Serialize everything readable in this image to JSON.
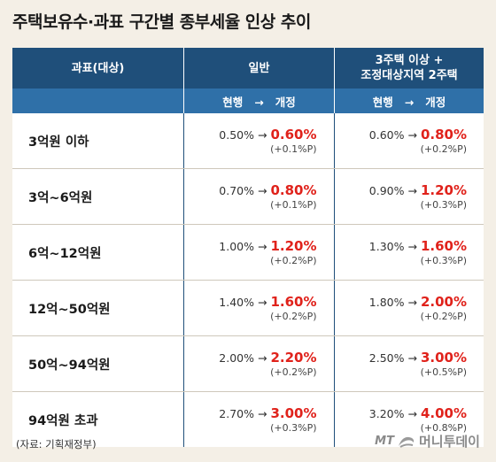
{
  "title": "주택보유수·과표 구간별 종부세율 인상 추이",
  "header": {
    "col0": "과표(대상)",
    "col1": "일반",
    "col2_line1": "3주택 이상 +",
    "col2_line2": "조정대상지역 2주택",
    "sub1": "현행   →   개정",
    "sub2": "현행   →   개정"
  },
  "rows": [
    {
      "label": "3억원 이하",
      "g_cur": "0.50% →",
      "g_new": "0.60%",
      "g_diff": "(+0.1%P)",
      "m_cur": "0.60% →",
      "m_new": "0.80%",
      "m_diff": "(+0.2%P)"
    },
    {
      "label": "3억~6억원",
      "g_cur": "0.70% →",
      "g_new": "0.80%",
      "g_diff": "(+0.1%P)",
      "m_cur": "0.90% →",
      "m_new": "1.20%",
      "m_diff": "(+0.3%P)"
    },
    {
      "label": "6억~12억원",
      "g_cur": "1.00% →",
      "g_new": "1.20%",
      "g_diff": "(+0.2%P)",
      "m_cur": "1.30% →",
      "m_new": "1.60%",
      "m_diff": "(+0.3%P)"
    },
    {
      "label": "12억~50억원",
      "g_cur": "1.40% →",
      "g_new": "1.60%",
      "g_diff": "(+0.2%P)",
      "m_cur": "1.80% →",
      "m_new": "2.00%",
      "m_diff": "(+0.2%P)"
    },
    {
      "label": "50억~94억원",
      "g_cur": "2.00% →",
      "g_new": "2.20%",
      "g_diff": "(+0.2%P)",
      "m_cur": "2.50% →",
      "m_new": "3.00%",
      "m_diff": "(+0.5%P)"
    },
    {
      "label": "94억원 초과",
      "g_cur": "2.70% →",
      "g_new": "3.00%",
      "g_diff": "(+0.3%P)",
      "m_cur": "3.20% →",
      "m_new": "4.00%",
      "m_diff": "(+0.8%P)"
    }
  ],
  "source": "(자료: 기획재정부)",
  "logo": {
    "mt": "MT",
    "name": "머니투데이"
  },
  "colors": {
    "header": "#1f4f7a",
    "subheader": "#2f70a8",
    "highlight": "#e0221b",
    "background": "#f4efe6"
  }
}
